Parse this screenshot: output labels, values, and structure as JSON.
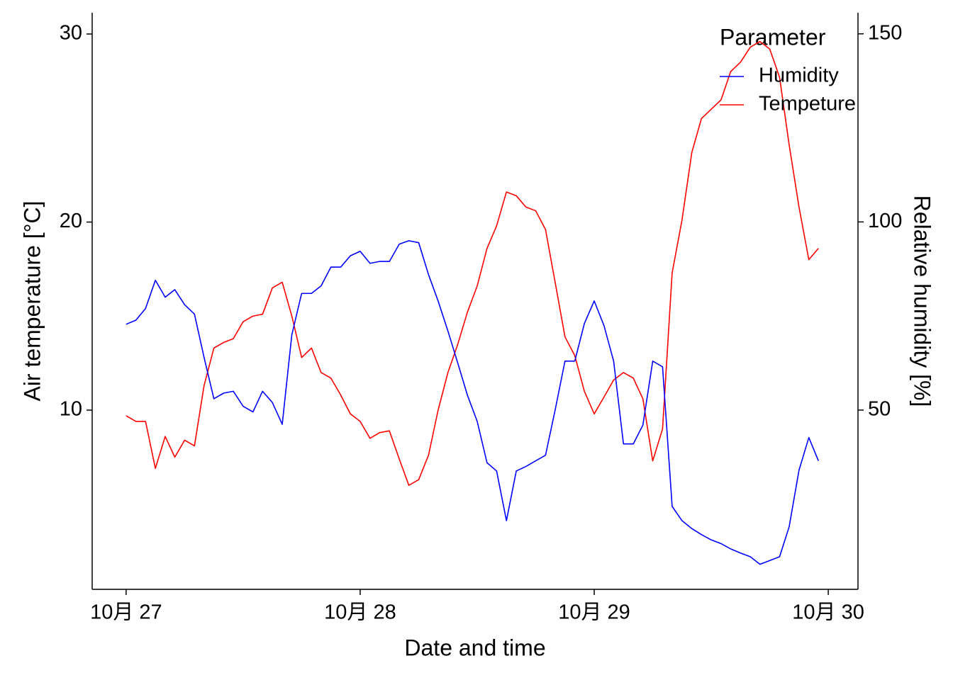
{
  "chart_data": {
    "type": "line",
    "xlabel": "Date and time",
    "ylabel": "Air temperature [°C]",
    "y2label": "Relative humidity [%]",
    "legend_title": "Parameter",
    "legend": "top-right",
    "x": [
      27,
      27.042,
      27.083,
      27.125,
      27.167,
      27.208,
      27.25,
      27.292,
      27.333,
      27.375,
      27.417,
      27.458,
      27.5,
      27.542,
      27.583,
      27.625,
      27.667,
      27.708,
      27.75,
      27.792,
      27.833,
      27.875,
      27.917,
      27.958,
      28,
      28.042,
      28.083,
      28.125,
      28.167,
      28.208,
      28.25,
      28.292,
      28.333,
      28.375,
      28.417,
      28.458,
      28.5,
      28.542,
      28.583,
      28.625,
      28.667,
      28.708,
      28.75,
      28.792,
      28.833,
      28.875,
      28.917,
      28.958,
      29,
      29.042,
      29.083,
      29.125,
      29.167,
      29.208,
      29.25,
      29.292,
      29.333,
      29.375,
      29.417,
      29.458,
      29.5,
      29.542,
      29.583,
      29.625,
      29.667,
      29.708,
      29.75,
      29.792,
      29.833,
      29.875,
      29.917,
      29.958
    ],
    "xlim": [
      26.855,
      30.127
    ],
    "xticks": [
      {
        "value": 27,
        "label": "10月 27"
      },
      {
        "value": 28,
        "label": "10月 28"
      },
      {
        "value": 29,
        "label": "10月 29"
      },
      {
        "value": 30,
        "label": "10月 30"
      }
    ],
    "ylim": [
      0.47,
      31.13
    ],
    "yticks": [
      10,
      20,
      30
    ],
    "y2lim": [
      2.35,
      155.6
    ],
    "y2ticks": [
      50,
      100,
      150
    ],
    "series": [
      {
        "name": "Humidity",
        "color": "#0000ff",
        "axis": "y2",
        "values": [
          72.8,
          73.9,
          77,
          84.5,
          80,
          82,
          78,
          75.5,
          64,
          53,
          54.5,
          55,
          51,
          49.5,
          55,
          52,
          46.2,
          70,
          81,
          81,
          83,
          88,
          88,
          91,
          92.2,
          89,
          89.5,
          89.5,
          94.1,
          95,
          94.5,
          86,
          79,
          71,
          62.5,
          54,
          47,
          36,
          33.8,
          20.6,
          33.8,
          35,
          36.5,
          38,
          50,
          63,
          63,
          73,
          79,
          72.4,
          63,
          41,
          41,
          46,
          63,
          61.5,
          24.4,
          20.6,
          18.5,
          16.9,
          15.5,
          14.5,
          13.1,
          12,
          11,
          9,
          10,
          11,
          19,
          34,
          42.7,
          36.5
        ]
      },
      {
        "name": "Tempeture",
        "color": "#ff0000",
        "values": [
          9.7,
          9.4,
          9.4,
          6.9,
          8.6,
          7.5,
          8.4,
          8.1,
          11.3,
          13.3,
          13.6,
          13.8,
          14.7,
          15.0,
          15.1,
          16.5,
          16.8,
          15.0,
          12.8,
          13.3,
          12.0,
          11.7,
          10.8,
          9.8,
          9.4,
          8.5,
          8.8,
          8.9,
          7.4,
          6.0,
          6.3,
          7.6,
          10.0,
          12.0,
          13.5,
          15.2,
          16.6,
          18.6,
          19.8,
          21.6,
          21.4,
          20.8,
          20.6,
          19.6,
          16.8,
          13.9,
          12.9,
          11.0,
          9.8,
          10.7,
          11.6,
          12.0,
          11.7,
          10.6,
          7.3,
          9.0,
          17.3,
          20.1,
          23.7,
          25.5,
          26.0,
          26.5,
          28.0,
          28.5,
          29.3,
          29.6,
          29.2,
          27.7,
          24.1,
          20.8,
          18.0,
          18.6
        ]
      }
    ]
  }
}
